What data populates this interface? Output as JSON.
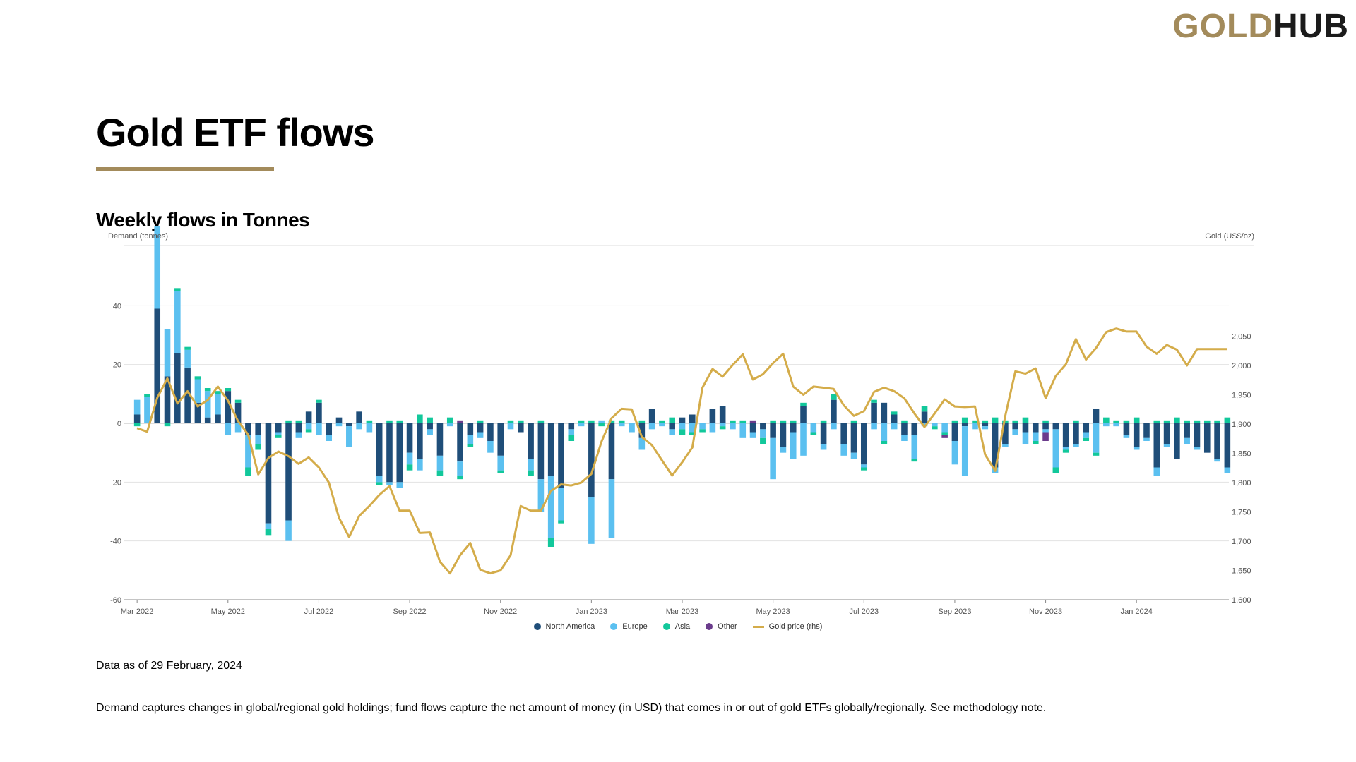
{
  "header": {
    "logo_gold": "GOLD",
    "logo_hub": "HUB"
  },
  "page": {
    "title": "Gold ETF flows",
    "subtitle": "Weekly flows in Tonnes",
    "data_as_of": "Data as of 29 February, 2024",
    "note": "Demand captures changes in global/regional gold holdings; fund flows capture the net amount of money (in USD) that comes in or out of gold ETFs globally/regionally. See methodology note."
  },
  "colors": {
    "north_america": "#1f4e79",
    "europe": "#5bc0f0",
    "asia": "#12c89b",
    "other": "#6b3c8c",
    "gold_price": "#d4ac4a",
    "brand_gold": "#a38b5b"
  },
  "chart_data": {
    "type": "bar",
    "stacked": true,
    "y_left_label": "Demand (tonnes)",
    "y_right_label": "Gold (US$/oz)",
    "ylim_left": [
      -60,
      60
    ],
    "yticks_left": [
      -60,
      -40,
      -20,
      0,
      20,
      40
    ],
    "ylim_right": [
      1600,
      2100
    ],
    "yticks_right": [
      1600,
      1650,
      1700,
      1750,
      1800,
      1850,
      1900,
      1950,
      2000,
      2050
    ],
    "ytick_labels_right": [
      "1,600",
      "1,650",
      "1,700",
      "1,750",
      "1,800",
      "1,850",
      "1,900",
      "1,950",
      "2,000",
      "2,050"
    ],
    "x_tick_labels": [
      "Mar 2022",
      "May 2022",
      "Jul 2022",
      "Sep 2022",
      "Nov 2022",
      "Jan 2023",
      "Mar 2023",
      "May 2023",
      "Jul 2023",
      "Sep 2023",
      "Nov 2023",
      "Jan 2024"
    ],
    "x_tick_weeks": [
      0,
      9,
      18,
      27,
      36,
      45,
      54,
      63,
      72,
      81,
      90,
      99
    ],
    "grid": true,
    "legend_position": "bottom",
    "weeks": 109,
    "series": [
      {
        "name": "North America",
        "key": "na",
        "type": "bar",
        "values": [
          3,
          0,
          0,
          0,
          0,
          0,
          0,
          0,
          0,
          0,
          0,
          0,
          0,
          0,
          0,
          0,
          0,
          0,
          0,
          0,
          0,
          0,
          0,
          0,
          0,
          0,
          0,
          0,
          0,
          0,
          0,
          0,
          0,
          0,
          0,
          0,
          0,
          0,
          0,
          0,
          0,
          0,
          0,
          0,
          0,
          0,
          0,
          0,
          0,
          0,
          0,
          0,
          0,
          0,
          0,
          0,
          0,
          0,
          0,
          0,
          0,
          0,
          0,
          0,
          0,
          0,
          0,
          0,
          0,
          0,
          0,
          0,
          0,
          0,
          0,
          0,
          0,
          0,
          0,
          0,
          0,
          0,
          0,
          0,
          0,
          0,
          0,
          0,
          0,
          0,
          0,
          0,
          0,
          0,
          0,
          0,
          0,
          0,
          0,
          0,
          0,
          0,
          0,
          0,
          0,
          0,
          0,
          0,
          0
        ]
      },
      {
        "name": "Europe",
        "key": "eu",
        "type": "bar",
        "values": []
      },
      {
        "name": "Asia",
        "key": "as",
        "type": "bar",
        "values": []
      },
      {
        "name": "Other",
        "key": "ot",
        "type": "bar",
        "values": []
      },
      {
        "name": "Gold price (rhs)",
        "key": "gold",
        "type": "line",
        "axis": "right",
        "values": []
      }
    ]
  }
}
